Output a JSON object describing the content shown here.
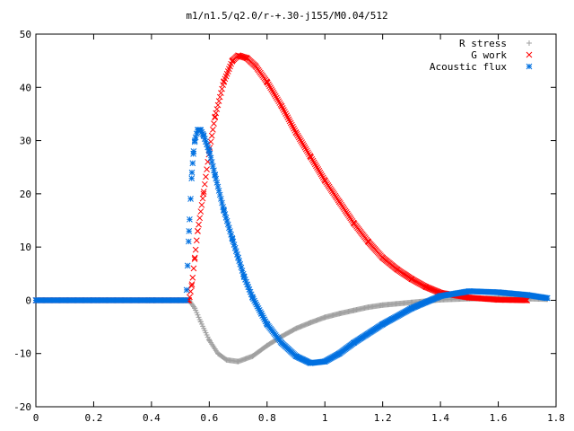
{
  "chart_data": {
    "type": "scatter",
    "title": "m1/n1.5/q2.0/r-+.30-j155/M0.04/512",
    "xlabel": "",
    "ylabel": "",
    "xlim": [
      0,
      1.8
    ],
    "ylim": [
      -20,
      50
    ],
    "xticks": [
      "0",
      "0.2",
      "0.4",
      "0.6",
      "0.8",
      "1",
      "1.2",
      "1.4",
      "1.6",
      "1.8"
    ],
    "yticks": [
      "-20",
      "-10",
      "0",
      "10",
      "20",
      "30",
      "40",
      "50"
    ],
    "grid": false,
    "legend_position": "top-right",
    "series": [
      {
        "name": "R stress",
        "marker": "plus",
        "color": "#a0a0a0",
        "points": [
          [
            0.0,
            0.0
          ],
          [
            0.2,
            0.0
          ],
          [
            0.4,
            0.0
          ],
          [
            0.53,
            0.0
          ],
          [
            0.55,
            -1.5
          ],
          [
            0.57,
            -4.0
          ],
          [
            0.6,
            -7.5
          ],
          [
            0.63,
            -10.0
          ],
          [
            0.66,
            -11.2
          ],
          [
            0.7,
            -11.5
          ],
          [
            0.75,
            -10.5
          ],
          [
            0.8,
            -8.5
          ],
          [
            0.85,
            -6.8
          ],
          [
            0.9,
            -5.3
          ],
          [
            0.95,
            -4.2
          ],
          [
            1.0,
            -3.2
          ],
          [
            1.05,
            -2.5
          ],
          [
            1.1,
            -1.9
          ],
          [
            1.15,
            -1.3
          ],
          [
            1.2,
            -0.9
          ],
          [
            1.3,
            -0.4
          ],
          [
            1.4,
            0.1
          ],
          [
            1.5,
            0.3
          ],
          [
            1.6,
            0.4
          ],
          [
            1.7,
            0.3
          ],
          [
            1.77,
            0.2
          ]
        ]
      },
      {
        "name": "G work",
        "marker": "cross",
        "color": "#ff0000",
        "points": [
          [
            0.0,
            0.0
          ],
          [
            0.2,
            0.0
          ],
          [
            0.4,
            0.0
          ],
          [
            0.53,
            0.0
          ],
          [
            0.54,
            3.0
          ],
          [
            0.55,
            8.0
          ],
          [
            0.56,
            13.0
          ],
          [
            0.58,
            20.0
          ],
          [
            0.6,
            28.0
          ],
          [
            0.62,
            34.5
          ],
          [
            0.65,
            41.0
          ],
          [
            0.68,
            45.0
          ],
          [
            0.7,
            46.0
          ],
          [
            0.73,
            45.5
          ],
          [
            0.76,
            44.0
          ],
          [
            0.8,
            41.0
          ],
          [
            0.85,
            36.5
          ],
          [
            0.9,
            31.5
          ],
          [
            0.95,
            27.0
          ],
          [
            1.0,
            22.5
          ],
          [
            1.05,
            18.5
          ],
          [
            1.1,
            14.5
          ],
          [
            1.15,
            11.0
          ],
          [
            1.2,
            8.0
          ],
          [
            1.25,
            5.8
          ],
          [
            1.3,
            4.0
          ],
          [
            1.35,
            2.5
          ],
          [
            1.4,
            1.4
          ],
          [
            1.5,
            0.5
          ],
          [
            1.6,
            0.1
          ],
          [
            1.7,
            0.0
          ]
        ]
      },
      {
        "name": "Acoustic flux",
        "marker": "star",
        "color": "#0070e0",
        "points": [
          [
            0.0,
            0.0
          ],
          [
            0.2,
            0.0
          ],
          [
            0.4,
            0.0
          ],
          [
            0.52,
            0.0
          ],
          [
            0.53,
            13.0
          ],
          [
            0.54,
            24.0
          ],
          [
            0.545,
            27.5
          ],
          [
            0.55,
            30.0
          ],
          [
            0.56,
            32.0
          ],
          [
            0.57,
            32.0
          ],
          [
            0.58,
            31.0
          ],
          [
            0.6,
            28.0
          ],
          [
            0.62,
            23.5
          ],
          [
            0.65,
            17.0
          ],
          [
            0.68,
            11.5
          ],
          [
            0.7,
            8.0
          ],
          [
            0.72,
            4.5
          ],
          [
            0.75,
            0.5
          ],
          [
            0.78,
            -2.5
          ],
          [
            0.8,
            -4.5
          ],
          [
            0.85,
            -8.0
          ],
          [
            0.9,
            -10.5
          ],
          [
            0.95,
            -11.8
          ],
          [
            1.0,
            -11.5
          ],
          [
            1.05,
            -10.0
          ],
          [
            1.1,
            -8.0
          ],
          [
            1.2,
            -4.5
          ],
          [
            1.3,
            -1.5
          ],
          [
            1.4,
            0.8
          ],
          [
            1.5,
            1.7
          ],
          [
            1.6,
            1.5
          ],
          [
            1.7,
            1.0
          ],
          [
            1.77,
            0.4
          ]
        ]
      }
    ]
  }
}
